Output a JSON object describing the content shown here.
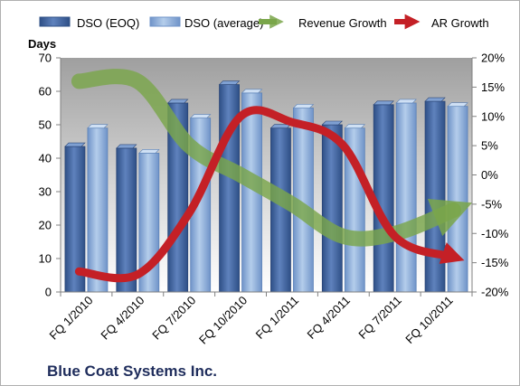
{
  "chart_data": {
    "type": "bar",
    "title": "Blue Coat Systems Inc.",
    "categories": [
      "FQ 1/2010",
      "FQ 4/2010",
      "FQ 7/2010",
      "FQ 10/2010",
      "FQ 1/2011",
      "FQ 4/2011",
      "FQ 7/2011",
      "FQ 10/2011"
    ],
    "y_left": {
      "label": "Days",
      "range": [
        0,
        70
      ],
      "ticks": [
        "0",
        "10",
        "20",
        "30",
        "40",
        "50",
        "60",
        "70"
      ]
    },
    "y_right": {
      "label": "",
      "range": [
        -20,
        20
      ],
      "ticks": [
        "-20%",
        "-15%",
        "-10%",
        "-5%",
        "0%",
        "5%",
        "10%",
        "15%",
        "20%"
      ]
    },
    "series": [
      {
        "name": "DSO (EOQ)",
        "type": "bar",
        "axis": "left",
        "color": "#4a6ba6",
        "values": [
          43.5,
          43,
          56.5,
          62,
          49,
          50,
          56,
          57
        ]
      },
      {
        "name": "DSO (average)",
        "type": "bar",
        "axis": "left",
        "color": "#8fb0da",
        "values": [
          49,
          41.5,
          52,
          59.5,
          55,
          49,
          56.5,
          55.5
        ]
      },
      {
        "name": "Revenue Growth",
        "type": "line",
        "axis": "right",
        "color": "#7aa64a",
        "values": [
          16,
          16,
          5,
          0,
          -5,
          -10.5,
          -10,
          -6
        ]
      },
      {
        "name": "AR Growth",
        "type": "line",
        "axis": "right",
        "color": "#c42026",
        "values": [
          -16.5,
          -17,
          -6.5,
          10,
          9,
          5,
          -10.5,
          -14
        ]
      }
    ],
    "grid": false,
    "legend": "top"
  }
}
